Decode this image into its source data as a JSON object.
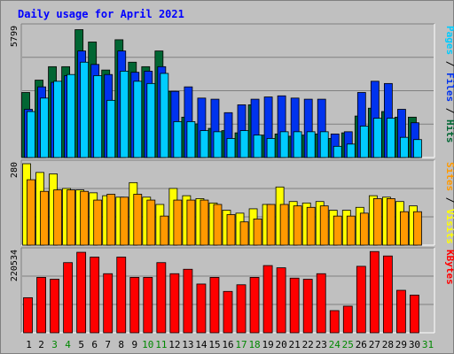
{
  "chart_data": {
    "type": "bar",
    "title": "Daily usage for April 2021",
    "categories": [
      "1",
      "2",
      "3",
      "4",
      "5",
      "6",
      "7",
      "8",
      "9",
      "10",
      "11",
      "12",
      "13",
      "14",
      "15",
      "16",
      "17",
      "18",
      "19",
      "20",
      "21",
      "22",
      "23",
      "24",
      "25",
      "26",
      "27",
      "28",
      "29",
      "30",
      "31"
    ],
    "weekend_days": [
      "3",
      "4",
      "10",
      "11",
      "17",
      "18",
      "24",
      "25",
      "31"
    ],
    "colors": {
      "hits": "#006633",
      "files": "#0033ee",
      "pages": "#00ccff",
      "visits": "#ffff00",
      "sites": "#ff9900",
      "kbytes": "#ff0000",
      "title": "#0000ff",
      "weekday_label": "#000000",
      "weekend_label": "#008800"
    },
    "panels": [
      {
        "id": "hits-files-pages",
        "axis_max_label": "5799",
        "ymax": 5799,
        "legend": [
          {
            "text": "Pages",
            "color": "#00ccff"
          },
          {
            "text": " / ",
            "color": "#000000"
          },
          {
            "text": "Files",
            "color": "#0033ee"
          },
          {
            "text": " / ",
            "color": "#000000"
          },
          {
            "text": "Hits",
            "color": "#006633"
          }
        ],
        "series": [
          {
            "name": "Hits",
            "values": [
              2900,
              3450,
              4050,
              4050,
              5700,
              5150,
              3900,
              5250,
              4250,
              4050,
              4750,
              2950,
              1800,
              1500,
              1300,
              1200,
              1100,
              2350,
              1000,
              1050,
              950,
              1000,
              1050,
              850,
              1100,
              1850,
              2200,
              2050,
              1800,
              1800,
              0
            ]
          },
          {
            "name": "Files",
            "values": [
              2150,
              3150,
              3350,
              3650,
              4750,
              4150,
              3700,
              4750,
              3800,
              3850,
              4050,
              2950,
              3150,
              2650,
              2600,
              2000,
              2350,
              2600,
              2700,
              2750,
              2650,
              2600,
              2600,
              1050,
              1150,
              2900,
              3400,
              3300,
              2150,
              1550,
              0
            ]
          },
          {
            "name": "Pages",
            "values": [
              2050,
              2650,
              3400,
              3700,
              4250,
              3650,
              2550,
              3850,
              3400,
              3300,
              3750,
              1600,
              1600,
              1200,
              1150,
              850,
              1200,
              1000,
              850,
              1150,
              1150,
              1150,
              1150,
              500,
              600,
              1400,
              1750,
              1750,
              900,
              800,
              0
            ]
          }
        ]
      },
      {
        "id": "visits-sites",
        "axis_max_label": "280",
        "ymax": 280,
        "legend": [
          {
            "text": "Sites",
            "color": "#ff9900"
          },
          {
            "text": " / ",
            "color": "#000000"
          },
          {
            "text": "Visits",
            "color": "#ffff00"
          }
        ],
        "series": [
          {
            "name": "Visits",
            "values": [
              280,
              250,
              245,
              195,
              190,
              180,
              170,
              165,
              215,
              165,
              140,
              195,
              170,
              160,
              145,
              120,
              110,
              125,
              140,
              200,
              150,
              145,
              150,
              120,
              120,
              130,
              170,
              165,
              150,
              135,
              0
            ]
          },
          {
            "name": "Sites",
            "values": [
              225,
              185,
              190,
              190,
              185,
              155,
              175,
              165,
              175,
              155,
              100,
              155,
              155,
              155,
              140,
              105,
              80,
              90,
              140,
              140,
              135,
              130,
              135,
              100,
              100,
              110,
              160,
              160,
              115,
              115,
              0
            ]
          }
        ]
      },
      {
        "id": "kbytes",
        "axis_max_label": "220534",
        "ymax": 220534,
        "legend": [
          {
            "text": "KBytes",
            "color": "#ff0000"
          }
        ],
        "series": [
          {
            "name": "KBytes",
            "values": [
              95000,
              150000,
              145000,
              190000,
              218000,
              205000,
              160000,
              205000,
              150000,
              150000,
              190000,
              160000,
              172000,
              132000,
              150000,
              112000,
              130000,
              150000,
              182000,
              176000,
              148000,
              145000,
              160000,
              60000,
              72000,
              180000,
              220000,
              208000,
              115000,
              102000,
              0
            ]
          }
        ]
      }
    ]
  }
}
